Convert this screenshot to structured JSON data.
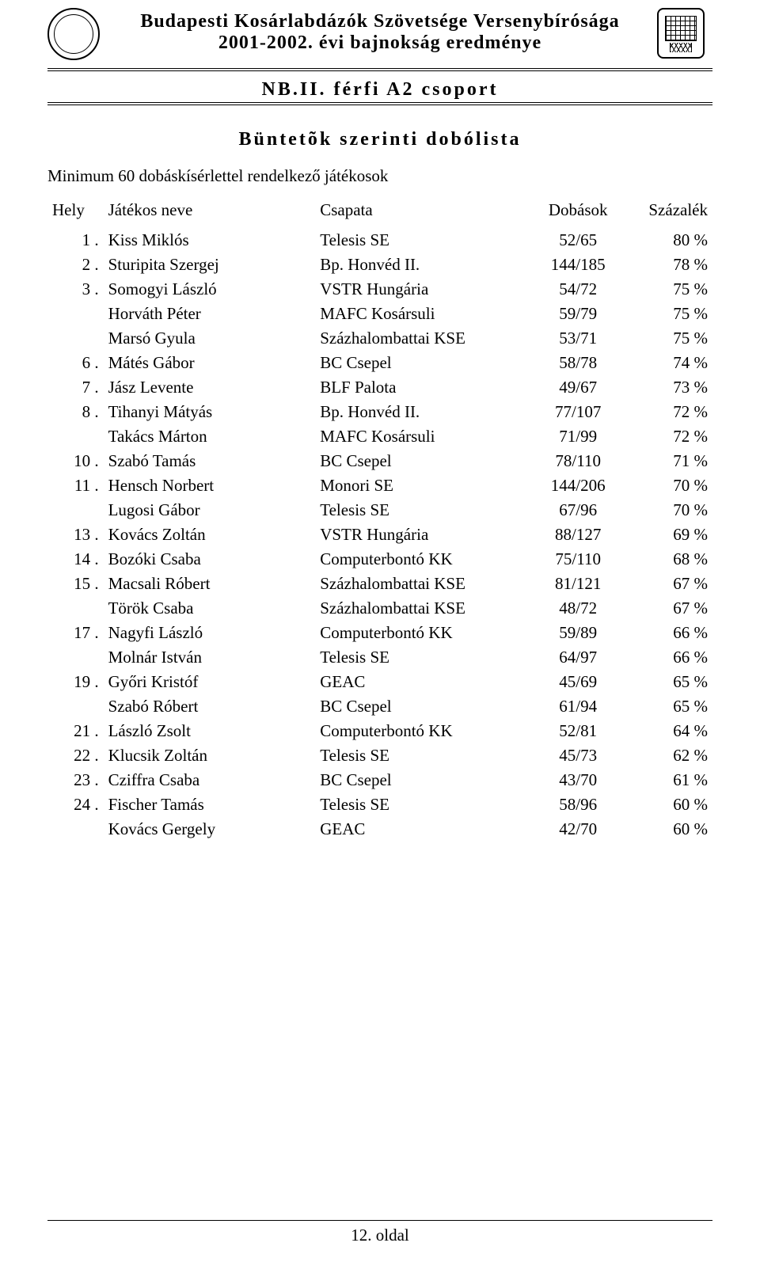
{
  "header": {
    "line1": "Budapesti Kosárlabdázók Szövetsége Versenybírósága",
    "line2": "2001-2002. évi bajnokság eredménye",
    "line3": "NB.II. férfi A2 csoport"
  },
  "section_title": "Büntetõk szerinti dobólista",
  "subtitle": "Minimum 60 dobáskísérlettel rendelkező játékosok",
  "columns": {
    "rank": "Hely",
    "name": "Játékos neve",
    "team": "Csapata",
    "throws": "Dobások",
    "percent": "Százalék"
  },
  "rows": [
    {
      "rank": "1 .",
      "name": "Kiss Miklós",
      "team": "Telesis SE",
      "throws": "52/65",
      "pct": "80 %"
    },
    {
      "rank": "2 .",
      "name": "Sturipita Szergej",
      "team": "Bp. Honvéd II.",
      "throws": "144/185",
      "pct": "78 %"
    },
    {
      "rank": "3 .",
      "name": "Somogyi László",
      "team": "VSTR Hungária",
      "throws": "54/72",
      "pct": "75 %"
    },
    {
      "rank": "",
      "name": "Horváth Péter",
      "team": "MAFC Kosársuli",
      "throws": "59/79",
      "pct": "75 %"
    },
    {
      "rank": "",
      "name": "Marsó Gyula",
      "team": "Százhalombattai KSE",
      "throws": "53/71",
      "pct": "75 %"
    },
    {
      "rank": "6 .",
      "name": "Mátés Gábor",
      "team": "BC Csepel",
      "throws": "58/78",
      "pct": "74 %"
    },
    {
      "rank": "7 .",
      "name": "Jász Levente",
      "team": "BLF Palota",
      "throws": "49/67",
      "pct": "73 %"
    },
    {
      "rank": "8 .",
      "name": "Tihanyi Mátyás",
      "team": "Bp. Honvéd II.",
      "throws": "77/107",
      "pct": "72 %"
    },
    {
      "rank": "",
      "name": "Takács Márton",
      "team": "MAFC Kosársuli",
      "throws": "71/99",
      "pct": "72 %"
    },
    {
      "rank": "10 .",
      "name": "Szabó Tamás",
      "team": "BC Csepel",
      "throws": "78/110",
      "pct": "71 %"
    },
    {
      "rank": "11 .",
      "name": "Hensch Norbert",
      "team": "Monori SE",
      "throws": "144/206",
      "pct": "70 %"
    },
    {
      "rank": "",
      "name": "Lugosi Gábor",
      "team": "Telesis SE",
      "throws": "67/96",
      "pct": "70 %"
    },
    {
      "rank": "13 .",
      "name": "Kovács Zoltán",
      "team": "VSTR Hungária",
      "throws": "88/127",
      "pct": "69 %"
    },
    {
      "rank": "14 .",
      "name": "Bozóki Csaba",
      "team": "Computerbontó KK",
      "throws": "75/110",
      "pct": "68 %"
    },
    {
      "rank": "15 .",
      "name": "Macsali Róbert",
      "team": "Százhalombattai KSE",
      "throws": "81/121",
      "pct": "67 %"
    },
    {
      "rank": "",
      "name": "Török Csaba",
      "team": "Százhalombattai KSE",
      "throws": "48/72",
      "pct": "67 %"
    },
    {
      "rank": "17 .",
      "name": "Nagyfi László",
      "team": "Computerbontó KK",
      "throws": "59/89",
      "pct": "66 %"
    },
    {
      "rank": "",
      "name": "Molnár István",
      "team": "Telesis SE",
      "throws": "64/97",
      "pct": "66 %"
    },
    {
      "rank": "19 .",
      "name": "Győri Kristóf",
      "team": "GEAC",
      "throws": "45/69",
      "pct": "65 %"
    },
    {
      "rank": "",
      "name": "Szabó Róbert",
      "team": "BC Csepel",
      "throws": "61/94",
      "pct": "65 %"
    },
    {
      "rank": "21 .",
      "name": "László Zsolt",
      "team": "Computerbontó KK",
      "throws": "52/81",
      "pct": "64 %"
    },
    {
      "rank": "22 .",
      "name": "Klucsik Zoltán",
      "team": "Telesis SE",
      "throws": "45/73",
      "pct": "62 %"
    },
    {
      "rank": "23 .",
      "name": "Cziffra Csaba",
      "team": "BC Csepel",
      "throws": "43/70",
      "pct": "61 %"
    },
    {
      "rank": "24 .",
      "name": "Fischer Tamás",
      "team": "Telesis SE",
      "throws": "58/96",
      "pct": "60 %"
    },
    {
      "rank": "",
      "name": "Kovács Gergely",
      "team": "GEAC",
      "throws": "42/70",
      "pct": "60 %"
    }
  ],
  "footer": "12. oldal"
}
